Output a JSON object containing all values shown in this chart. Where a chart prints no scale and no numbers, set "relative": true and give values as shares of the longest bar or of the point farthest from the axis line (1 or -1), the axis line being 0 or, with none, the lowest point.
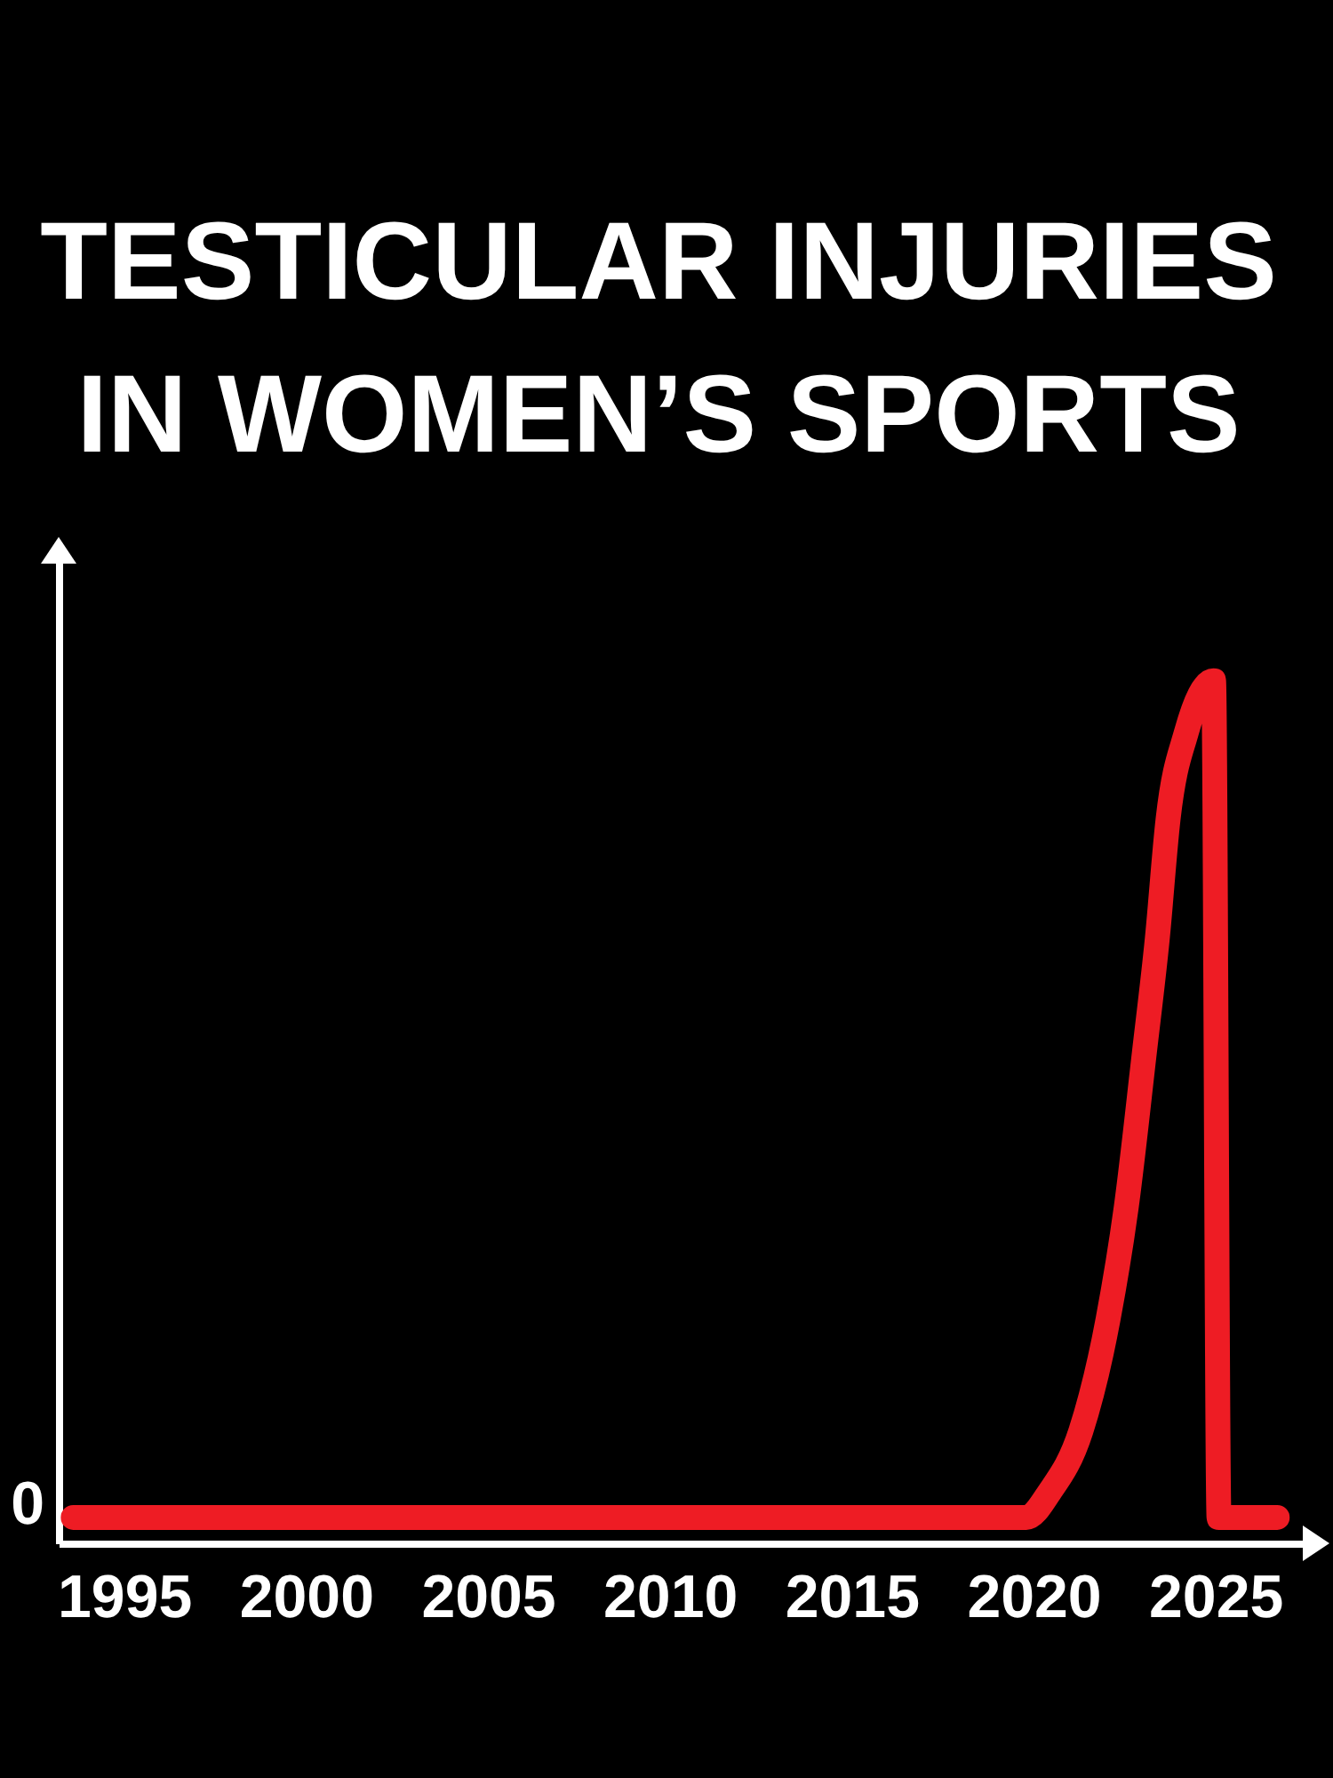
{
  "chart_data": {
    "type": "line",
    "title": "TESTICULAR INJURIES IN WOMEN’S SPORTS",
    "relative": true,
    "x": [
      1993.6,
      2019.8,
      2020.45,
      2021.3,
      2022.05,
      2022.55,
      2023.05,
      2023.4,
      2023.7,
      2024.2,
      2024.95,
      2025.1,
      2026.7
    ],
    "xlim": [
      1993.2,
      2027.5
    ],
    "xticks": [
      1995,
      2000,
      2005,
      2010,
      2015,
      2020,
      2025
    ],
    "series": [
      {
        "color": "#ee1c24",
        "values": [
          0.03,
          0.03,
          0.06,
          0.13,
          0.26,
          0.39,
          0.57,
          0.7,
          0.84,
          0.94,
          1,
          0.03,
          0.03
        ]
      }
    ],
    "annotations": [
      "0"
    ]
  }
}
